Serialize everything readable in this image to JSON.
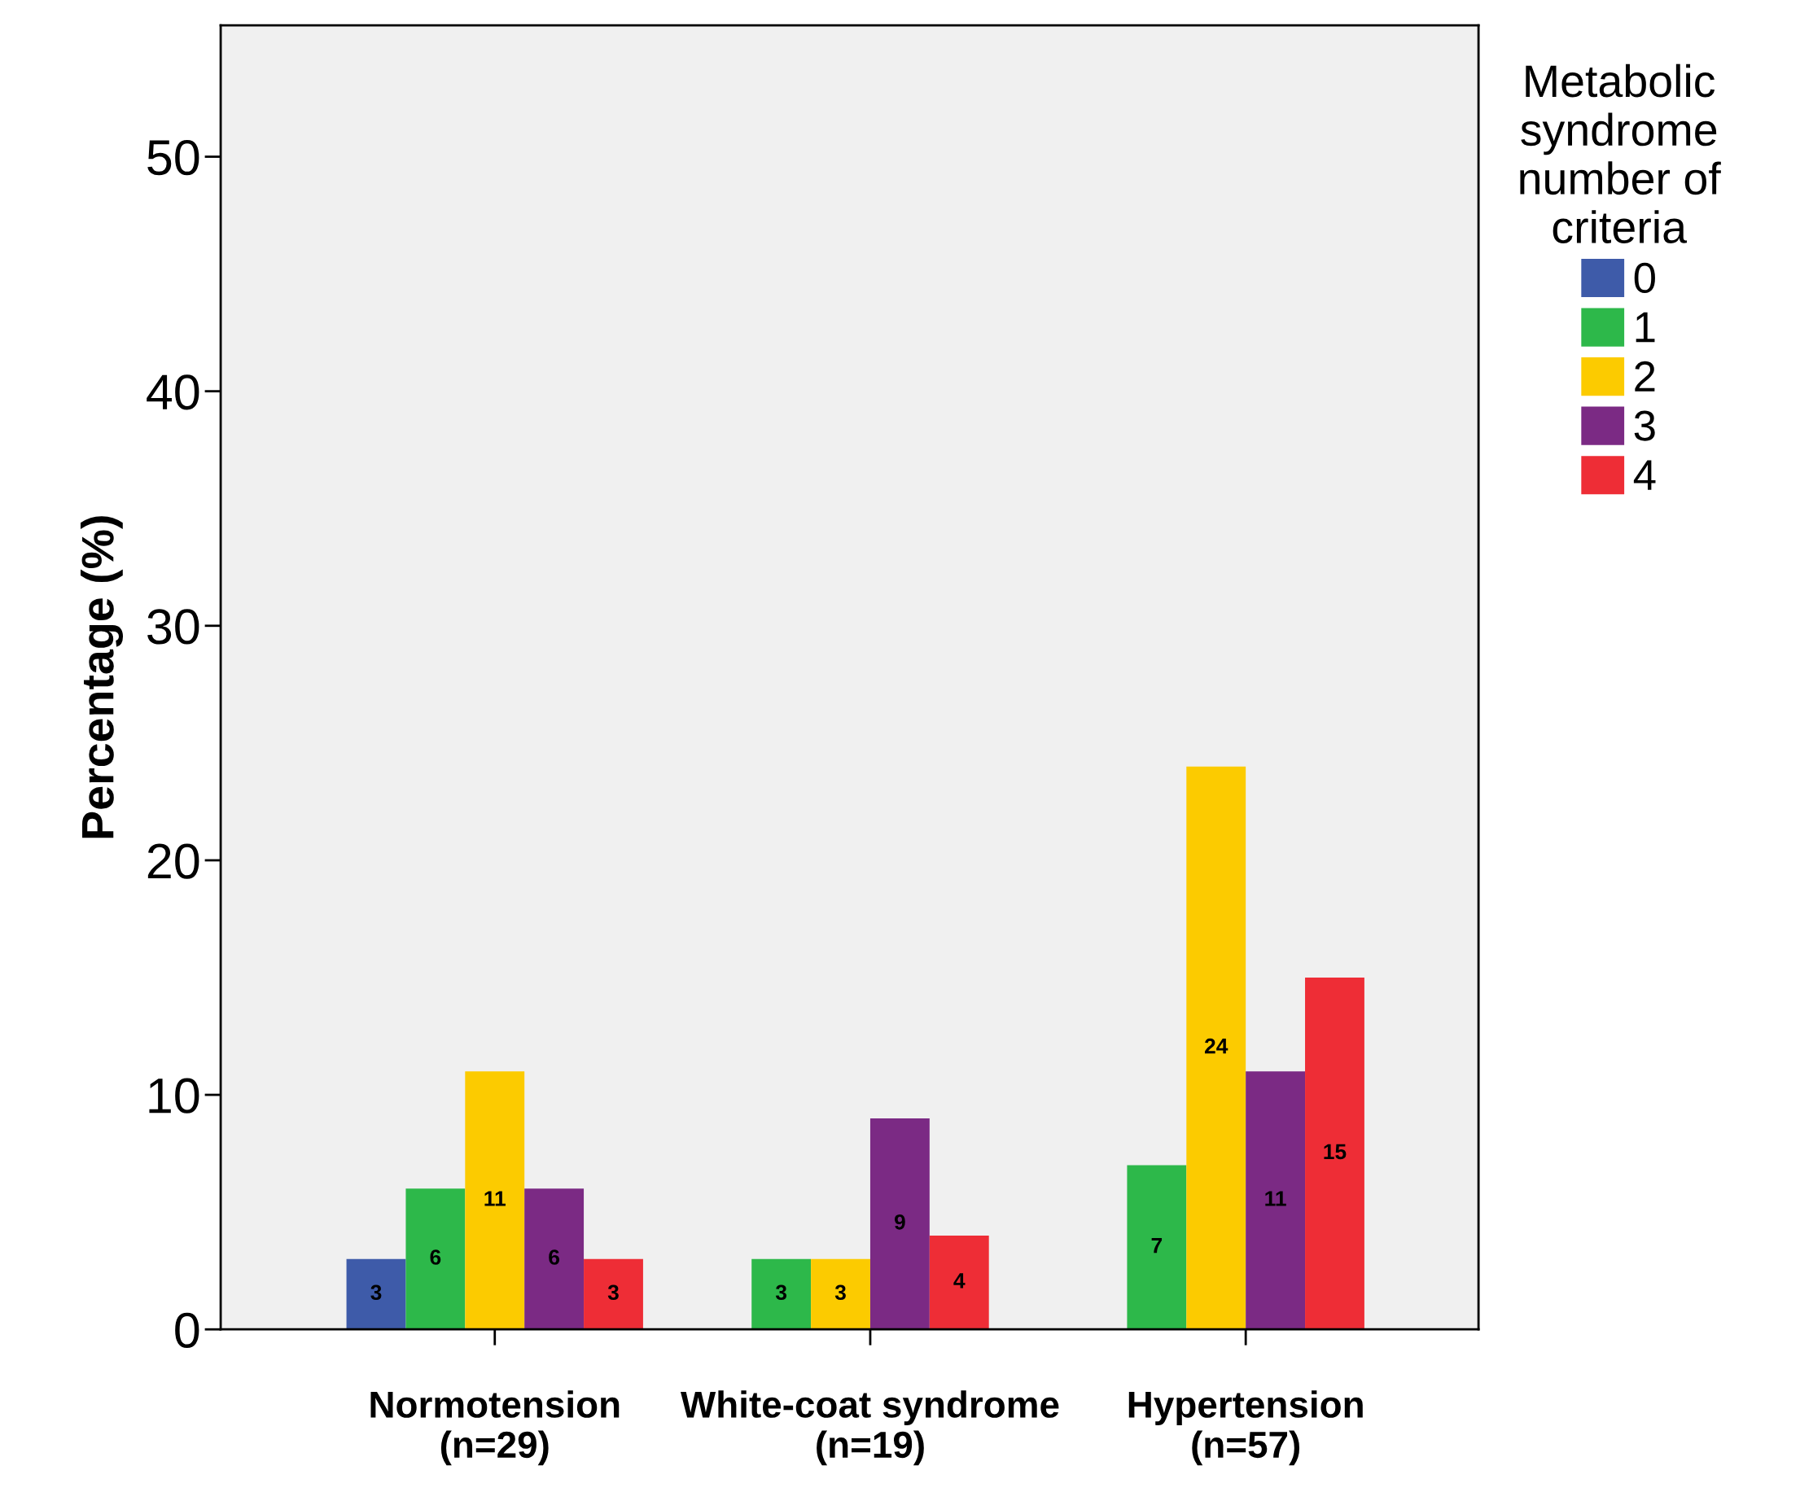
{
  "chart_data": {
    "type": "bar",
    "ylabel": "Percentage (%)",
    "legend_title": "Metabolic\nsyndrome\nnumber of\ncriteria",
    "categories": [
      "Normotension\n(n=29)",
      "White-coat syndrome\n(n=19)",
      "Hypertension\n(n=57)"
    ],
    "series": [
      {
        "name": "0",
        "color": "#3e5ba9",
        "values": [
          3,
          null,
          null
        ]
      },
      {
        "name": "1",
        "color": "#2db84a",
        "values": [
          6,
          3,
          7
        ]
      },
      {
        "name": "2",
        "color": "#fccb00",
        "values": [
          11,
          3,
          24
        ]
      },
      {
        "name": "3",
        "color": "#7b2a84",
        "values": [
          6,
          9,
          11
        ]
      },
      {
        "name": "4",
        "color": "#ee2d36",
        "values": [
          3,
          4,
          15
        ]
      }
    ],
    "ylim": [
      0,
      55.6
    ],
    "yticks": [
      0,
      10,
      20,
      30,
      40,
      50
    ],
    "grid": false,
    "legend": "right",
    "data_labels": true
  }
}
